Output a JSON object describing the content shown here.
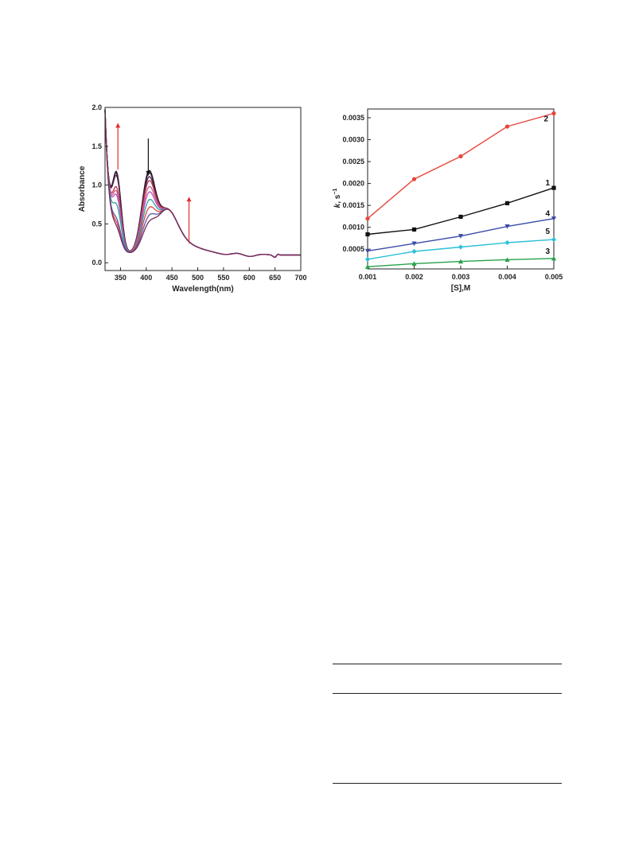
{
  "chart_data": [
    {
      "type": "line",
      "xlabel": "Wavelength(nm)",
      "ylabel": "Absorbance",
      "xlim": [
        320,
        700
      ],
      "ylim": [
        -0.1,
        2.0
      ],
      "xticks": [
        350,
        400,
        450,
        500,
        550,
        600,
        650,
        700
      ],
      "yticks": [
        0.0,
        0.5,
        1.0,
        1.5,
        2.0
      ],
      "ytick_labels": [
        "0.0",
        "0.5",
        "1.0",
        "1.5",
        "2.0"
      ],
      "series_colors": [
        "#2a1a2e",
        "#3b2240",
        "#4a1f3c",
        "#c0324a",
        "#d05b8a",
        "#b34fc0",
        "#2aa39a",
        "#e0443c",
        "#5a5aa8",
        "#7a2a5a"
      ],
      "series_peak_400": [
        1.08,
        1.05,
        1.0,
        0.95,
        0.87,
        0.8,
        0.7,
        0.6,
        0.5,
        0.42
      ],
      "series_shoulder_340": [
        1.2,
        1.18,
        1.15,
        1.0,
        0.95,
        0.9,
        0.78,
        0.55,
        0.6,
        0.5
      ],
      "annotations": [
        {
          "type": "arrow",
          "direction": "up",
          "color": "#e03030",
          "x": 345,
          "y_from": 1.2,
          "y_to": 1.8
        },
        {
          "type": "arrow",
          "direction": "down",
          "color": "#111111",
          "x": 404,
          "y_from": 1.6,
          "y_to": 1.12
        },
        {
          "type": "arrow",
          "direction": "up",
          "color": "#e03030",
          "x": 483,
          "y_from": 0.25,
          "y_to": 0.85
        }
      ],
      "grid": false
    },
    {
      "type": "line",
      "xlabel": "[S],M",
      "ylabel_main": "k",
      "ylabel_unit": ", s",
      "ylabel_sup": "−1",
      "xlim": [
        0.001,
        0.005
      ],
      "ylim": [
        5e-05,
        0.0037
      ],
      "xticks": [
        0.001,
        0.002,
        0.003,
        0.004,
        0.005
      ],
      "xtick_labels": [
        "0.001",
        "0.002",
        "0.003",
        "0.004",
        "0.005"
      ],
      "yticks": [
        0.0005,
        0.001,
        0.0015,
        0.002,
        0.0025,
        0.003,
        0.0035
      ],
      "ytick_labels": [
        "0.0005",
        "0.0010",
        "0.0015",
        "0.0020",
        "0.0025",
        "0.0030",
        "0.0035"
      ],
      "x": [
        0.001,
        0.002,
        0.003,
        0.004,
        0.005
      ],
      "series": [
        {
          "name": "2",
          "color": "#e8453c",
          "marker": "circle",
          "values": [
            0.0012,
            0.0021,
            0.00262,
            0.0033,
            0.0036
          ]
        },
        {
          "name": "1",
          "color": "#111111",
          "marker": "square",
          "values": [
            0.00084,
            0.00095,
            0.00124,
            0.00155,
            0.0019
          ]
        },
        {
          "name": "4",
          "color": "#3a4aa8",
          "marker": "triangle-down",
          "values": [
            0.00046,
            0.00063,
            0.0008,
            0.00102,
            0.0012
          ]
        },
        {
          "name": "5",
          "color": "#2bc0d8",
          "marker": "diamond",
          "values": [
            0.00027,
            0.00045,
            0.00055,
            0.00065,
            0.00072
          ]
        },
        {
          "name": "3",
          "color": "#2aa04a",
          "marker": "triangle-up",
          "values": [
            0.0001,
            0.00017,
            0.00022,
            0.00026,
            0.00029
          ]
        }
      ],
      "grid": false
    }
  ]
}
